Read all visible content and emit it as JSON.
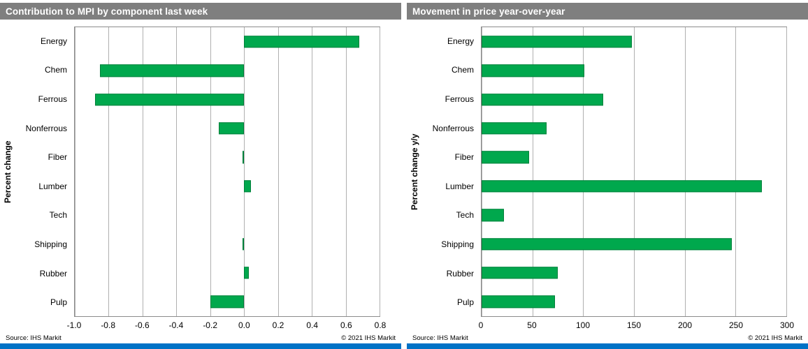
{
  "colors": {
    "header_bg": "#7F7F7F",
    "bar_fill": "#00A84D",
    "bar_border": "#00803A",
    "brand_bar": "#0072C6",
    "gridline": "#B0B0B0",
    "plot_border": "#8C8C8C"
  },
  "panels": [
    {
      "source": "Source:  IHS Markit",
      "copyright": "© 2021  IHS Markit"
    },
    {
      "source": "Source:  IHS Markit",
      "copyright": "© 2021  IHS Markit"
    }
  ],
  "chart_data": [
    {
      "type": "bar",
      "orientation": "horizontal",
      "title": "Contribution to MPI by component last week",
      "ylabel": "Percent change",
      "xlabel": "",
      "categories": [
        "Energy",
        "Chem",
        "Ferrous",
        "Nonferrous",
        "Fiber",
        "Lumber",
        "Tech",
        "Shipping",
        "Rubber",
        "Pulp"
      ],
      "values": [
        0.68,
        -0.85,
        -0.88,
        -0.15,
        -0.01,
        0.04,
        0.0,
        -0.01,
        0.03,
        -0.2
      ],
      "xlim": [
        -1.0,
        0.8
      ],
      "xticks": [
        {
          "label": "-1.0",
          "value": -1.0
        },
        {
          "label": "-0.8",
          "value": -0.8
        },
        {
          "label": "-0.6",
          "value": -0.6
        },
        {
          "label": "-0.4",
          "value": -0.4
        },
        {
          "label": "-0.2",
          "value": -0.2
        },
        {
          "label": "0.0",
          "value": 0.0
        },
        {
          "label": "0.2",
          "value": 0.2
        },
        {
          "label": "0.4",
          "value": 0.4
        },
        {
          "label": "0.6",
          "value": 0.6
        },
        {
          "label": "0.8",
          "value": 0.8
        }
      ],
      "grid": true,
      "legend": false
    },
    {
      "type": "bar",
      "orientation": "horizontal",
      "title": "Movement in price year-over-year",
      "ylabel": "Percent change y/y",
      "xlabel": "",
      "categories": [
        "Energy",
        "Chem",
        "Ferrous",
        "Nonferrous",
        "Fiber",
        "Lumber",
        "Tech",
        "Shipping",
        "Rubber",
        "Pulp"
      ],
      "values": [
        148,
        101,
        120,
        64,
        47,
        276,
        22,
        246,
        75,
        72
      ],
      "xlim": [
        0,
        300
      ],
      "xticks": [
        {
          "label": "0",
          "value": 0
        },
        {
          "label": "50",
          "value": 50
        },
        {
          "label": "100",
          "value": 100
        },
        {
          "label": "150",
          "value": 150
        },
        {
          "label": "200",
          "value": 200
        },
        {
          "label": "250",
          "value": 250
        },
        {
          "label": "300",
          "value": 300
        }
      ],
      "grid": true,
      "legend": false
    }
  ]
}
